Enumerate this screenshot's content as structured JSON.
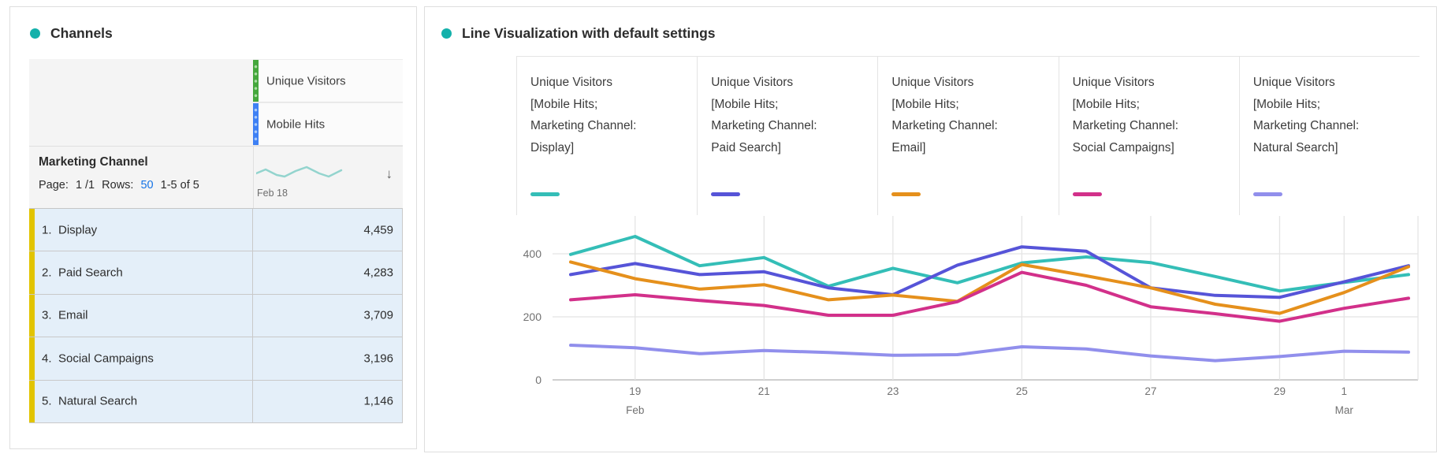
{
  "left_panel": {
    "title": "Channels",
    "accent_dot_color": "#14b1ab",
    "table": {
      "metric_headers": [
        {
          "label": "Unique Visitors",
          "bar_color": "#44a73c",
          "dot_color": "#abdca4"
        },
        {
          "label": "Mobile Hits",
          "bar_color": "#3e80f4",
          "dot_color": "#a9cbfa"
        }
      ],
      "dimension_header": {
        "title": "Marketing Channel",
        "page_label": "Page:",
        "page_value": "1 /1",
        "rows_label": "Rows:",
        "rows_value": "50",
        "range_text": "1-5 of 5",
        "spark_date": "Feb 18",
        "sort_icon": "↓",
        "sparkline": {
          "color": "#93d4ce",
          "points": [
            [
              0,
              12
            ],
            [
              12,
              7
            ],
            [
              26,
              14
            ],
            [
              36,
              16
            ],
            [
              50,
              9
            ],
            [
              64,
              4
            ],
            [
              80,
              12
            ],
            [
              92,
              16
            ],
            [
              108,
              8
            ]
          ]
        }
      },
      "row_accent_color": "#e2c400",
      "row_bg": "#e4eff9",
      "rows": [
        {
          "num": "1.",
          "name": "Display",
          "value": "4,459"
        },
        {
          "num": "2.",
          "name": "Paid Search",
          "value": "4,283"
        },
        {
          "num": "3.",
          "name": "Email",
          "value": "3,709"
        },
        {
          "num": "4.",
          "name": "Social Campaigns",
          "value": "3,196"
        },
        {
          "num": "5.",
          "name": "Natural Search",
          "value": "1,146"
        }
      ]
    }
  },
  "right_panel": {
    "title": "Line Visualization with default settings",
    "accent_dot_color": "#14b1ab",
    "legend": [
      {
        "lines": [
          "Unique Visitors",
          "[Mobile Hits;",
          "Marketing Channel:",
          "Display]"
        ],
        "color": "#34beb7"
      },
      {
        "lines": [
          "Unique Visitors",
          "[Mobile Hits;",
          "Marketing Channel:",
          "Paid Search]"
        ],
        "color": "#5654d8"
      },
      {
        "lines": [
          "Unique Visitors",
          "[Mobile Hits;",
          "Marketing Channel:",
          "Email]"
        ],
        "color": "#e5901c"
      },
      {
        "lines": [
          "Unique Visitors",
          "[Mobile Hits;",
          "Marketing Channel:",
          "Social Campaigns]"
        ],
        "color": "#d2308a"
      },
      {
        "lines": [
          "Unique Visitors",
          "[Mobile Hits;",
          "Marketing Channel:",
          "Natural Search]"
        ],
        "color": "#918fec"
      }
    ]
  },
  "chart_data": {
    "type": "line",
    "title": "Line Visualization with default settings",
    "x": [
      "Feb 18",
      "Feb 19",
      "Feb 20",
      "Feb 21",
      "Feb 22",
      "Feb 23",
      "Feb 24",
      "Feb 25",
      "Feb 26",
      "Feb 27",
      "Feb 28",
      "Feb 29",
      "Mar 1",
      "Mar 2"
    ],
    "x_ticks": [
      {
        "index": 1,
        "label": "19",
        "month": "Feb"
      },
      {
        "index": 3,
        "label": "21"
      },
      {
        "index": 5,
        "label": "23"
      },
      {
        "index": 7,
        "label": "25"
      },
      {
        "index": 9,
        "label": "27"
      },
      {
        "index": 11,
        "label": "29"
      },
      {
        "index": 12,
        "label": "1",
        "month": "Mar"
      }
    ],
    "y_ticks": [
      0,
      200,
      400
    ],
    "ylim": [
      0,
      580
    ],
    "grid": true,
    "legend_position": "top",
    "series": [
      {
        "name": "Unique Visitors [Mobile Hits; Marketing Channel: Display]",
        "color": "#34beb7",
        "values": [
          398,
          455,
          362,
          388,
          297,
          354,
          308,
          371,
          390,
          372,
          328,
          282,
          309,
          334
        ]
      },
      {
        "name": "Unique Visitors [Mobile Hits; Marketing Channel: Paid Search]",
        "color": "#5654d8",
        "values": [
          334,
          369,
          334,
          343,
          292,
          270,
          364,
          422,
          408,
          292,
          268,
          262,
          311,
          362
        ]
      },
      {
        "name": "Unique Visitors [Mobile Hits; Marketing Channel: Email]",
        "color": "#e5901c",
        "values": [
          374,
          321,
          288,
          302,
          254,
          269,
          249,
          366,
          330,
          292,
          240,
          211,
          277,
          359
        ]
      },
      {
        "name": "Unique Visitors [Mobile Hits; Marketing Channel: Social Campaigns]",
        "color": "#d2308a",
        "values": [
          254,
          270,
          252,
          236,
          205,
          205,
          248,
          341,
          300,
          232,
          210,
          186,
          227,
          259
        ]
      },
      {
        "name": "Unique Visitors [Mobile Hits; Marketing Channel: Natural Search]",
        "color": "#918fec",
        "values": [
          110,
          102,
          83,
          93,
          87,
          78,
          80,
          105,
          98,
          76,
          61,
          74,
          91,
          88
        ]
      }
    ]
  }
}
